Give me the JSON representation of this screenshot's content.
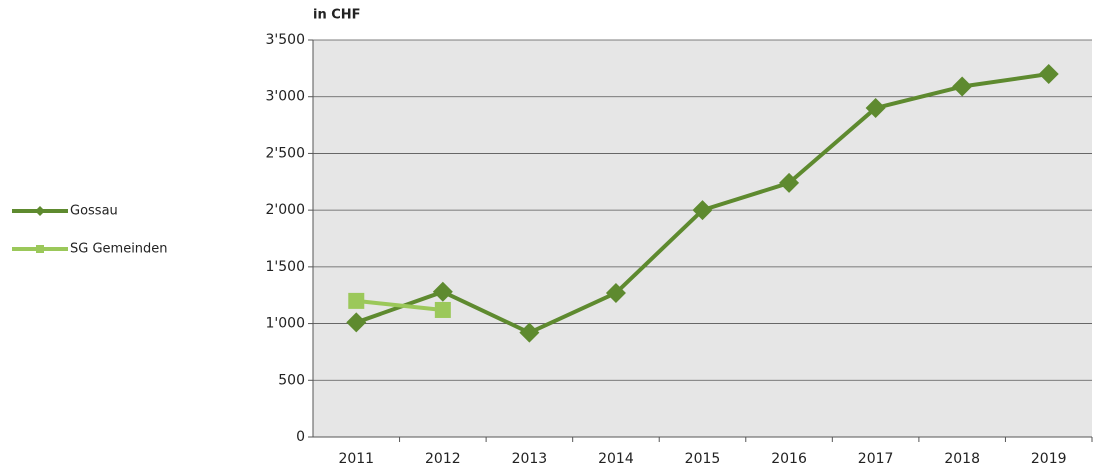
{
  "chart_data": {
    "type": "line",
    "y_label": "in CHF",
    "categories": [
      "2011",
      "2012",
      "2013",
      "2014",
      "2015",
      "2016",
      "2017",
      "2018",
      "2019"
    ],
    "series": [
      {
        "name": "Gossau",
        "color": "#5e8a2f",
        "marker": "diamond",
        "values": [
          1010,
          1280,
          920,
          1270,
          2000,
          2240,
          2900,
          3090,
          3200
        ]
      },
      {
        "name": "SG Gemeinden",
        "color": "#9bc85a",
        "marker": "square",
        "values": [
          1200,
          1120,
          null,
          null,
          null,
          null,
          null,
          null,
          null
        ]
      }
    ],
    "ylim": [
      0,
      3500
    ],
    "yticks": [
      0,
      500,
      {
        "value": 1000,
        "label": "1'000"
      },
      {
        "value": 1500,
        "label": "1'500"
      },
      {
        "value": 2000,
        "label": "2'000"
      },
      {
        "value": 2500,
        "label": "2'500"
      },
      {
        "value": 3000,
        "label": "3'000"
      },
      {
        "value": 3500,
        "label": "3'500"
      }
    ],
    "grid": true,
    "legend": "left"
  }
}
